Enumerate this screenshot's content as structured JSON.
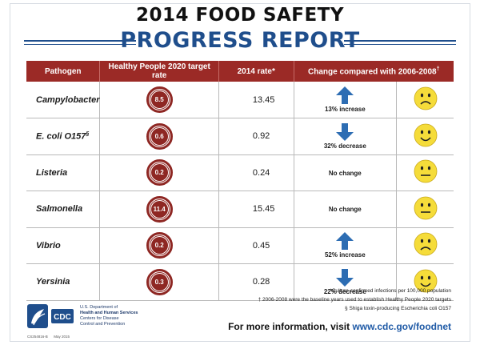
{
  "title_line1": "2014 FOOD SAFETY",
  "title_line2": "PROGRESS REPORT",
  "columns": [
    "Pathogen",
    "Healthy People 2020 target rate",
    "2014 rate*",
    "Change compared with 2006-2008"
  ],
  "change_col_sup": "†",
  "rows": [
    {
      "pathogen": "Campylobacter",
      "pathogen_sup": "",
      "target": "8.5",
      "rate": "13.45",
      "direction": "up",
      "change": "13% increase",
      "mood": "sad"
    },
    {
      "pathogen": "E. coli O157",
      "pathogen_sup": "§",
      "target": "0.6",
      "rate": "0.92",
      "direction": "down",
      "change": "32% decrease",
      "mood": "happy"
    },
    {
      "pathogen": "Listeria",
      "pathogen_sup": "",
      "target": "0.2",
      "rate": "0.24",
      "direction": "none",
      "change": "No change",
      "mood": "neutral"
    },
    {
      "pathogen": "Salmonella",
      "pathogen_sup": "",
      "target": "11.4",
      "rate": "15.45",
      "direction": "none",
      "change": "No change",
      "mood": "neutral"
    },
    {
      "pathogen": "Vibrio",
      "pathogen_sup": "",
      "target": "0.2",
      "rate": "0.45",
      "direction": "up",
      "change": "52% increase",
      "mood": "sad"
    },
    {
      "pathogen": "Yersinia",
      "pathogen_sup": "",
      "target": "0.3",
      "rate": "0.28",
      "direction": "down",
      "change": "22% decrease",
      "mood": "happy"
    }
  ],
  "notes": [
    "*Culture-confirmed infections per 100,000 population",
    "† 2006-2008 were the baseline years used to establish Healthy People 2020 targets",
    "§ Shiga toxin-producing Escherichia coli O157"
  ],
  "more_info_prefix": "For more information, visit ",
  "more_info_link": "www.cdc.gov/foodnet",
  "cdc_logo_text": "CDC",
  "hhs_line1": "U.S. Department of",
  "hhs_line2": "Health and Human Services",
  "hhs_line3": "Centers for Disease",
  "hhs_line4": "Control and Prevention",
  "cs_code": "CS254816-B",
  "cs_date": "May 2015",
  "colors": {
    "header_red": "#9b2a26",
    "badge_red": "#8e2723",
    "title_blue": "#1f4e8c",
    "arrow_blue": "#2d6db3",
    "face_yellow": "#f5dc3a",
    "link_blue": "#1f5aa6"
  }
}
